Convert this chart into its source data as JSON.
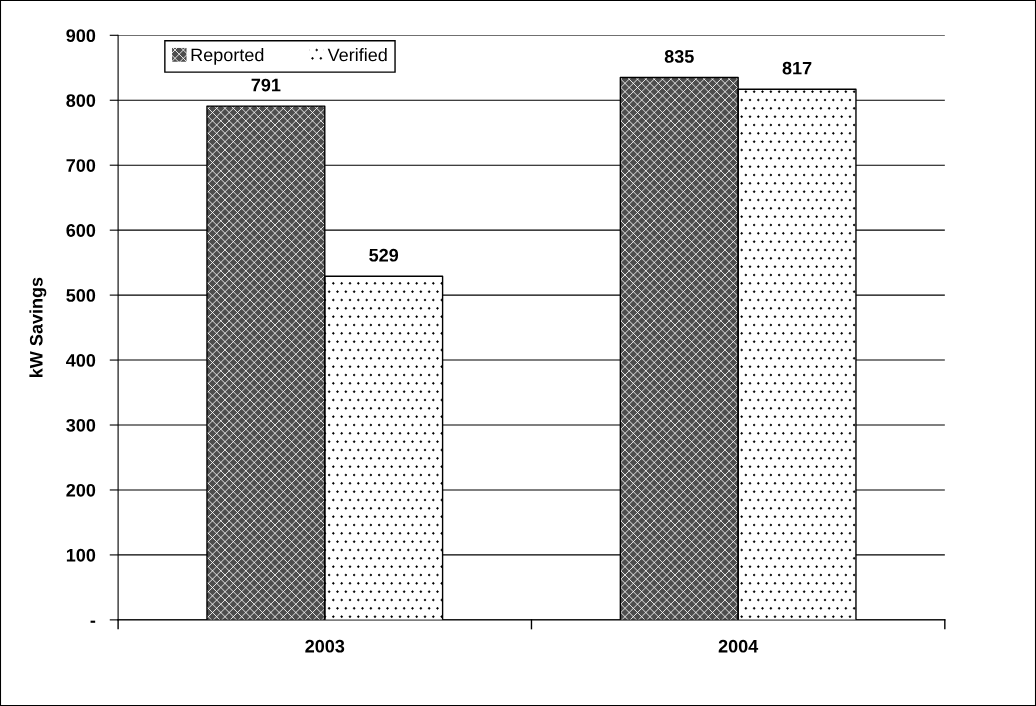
{
  "chart_data": {
    "type": "bar",
    "ylabel": "kW Savings",
    "categories": [
      "2003",
      "2004"
    ],
    "series": [
      {
        "name": "Reported",
        "color": "#4d4d4d",
        "values": [
          791,
          835
        ]
      },
      {
        "name": "Verified",
        "color": "#ffffff",
        "values": [
          529,
          817
        ]
      }
    ],
    "ylim": [
      0,
      900
    ],
    "yticks": [
      {
        "value": 0,
        "label": "-"
      },
      100,
      200,
      300,
      400,
      500,
      600,
      700,
      800,
      900
    ],
    "grid": "y",
    "legend": "top left",
    "data_labels": true
  }
}
